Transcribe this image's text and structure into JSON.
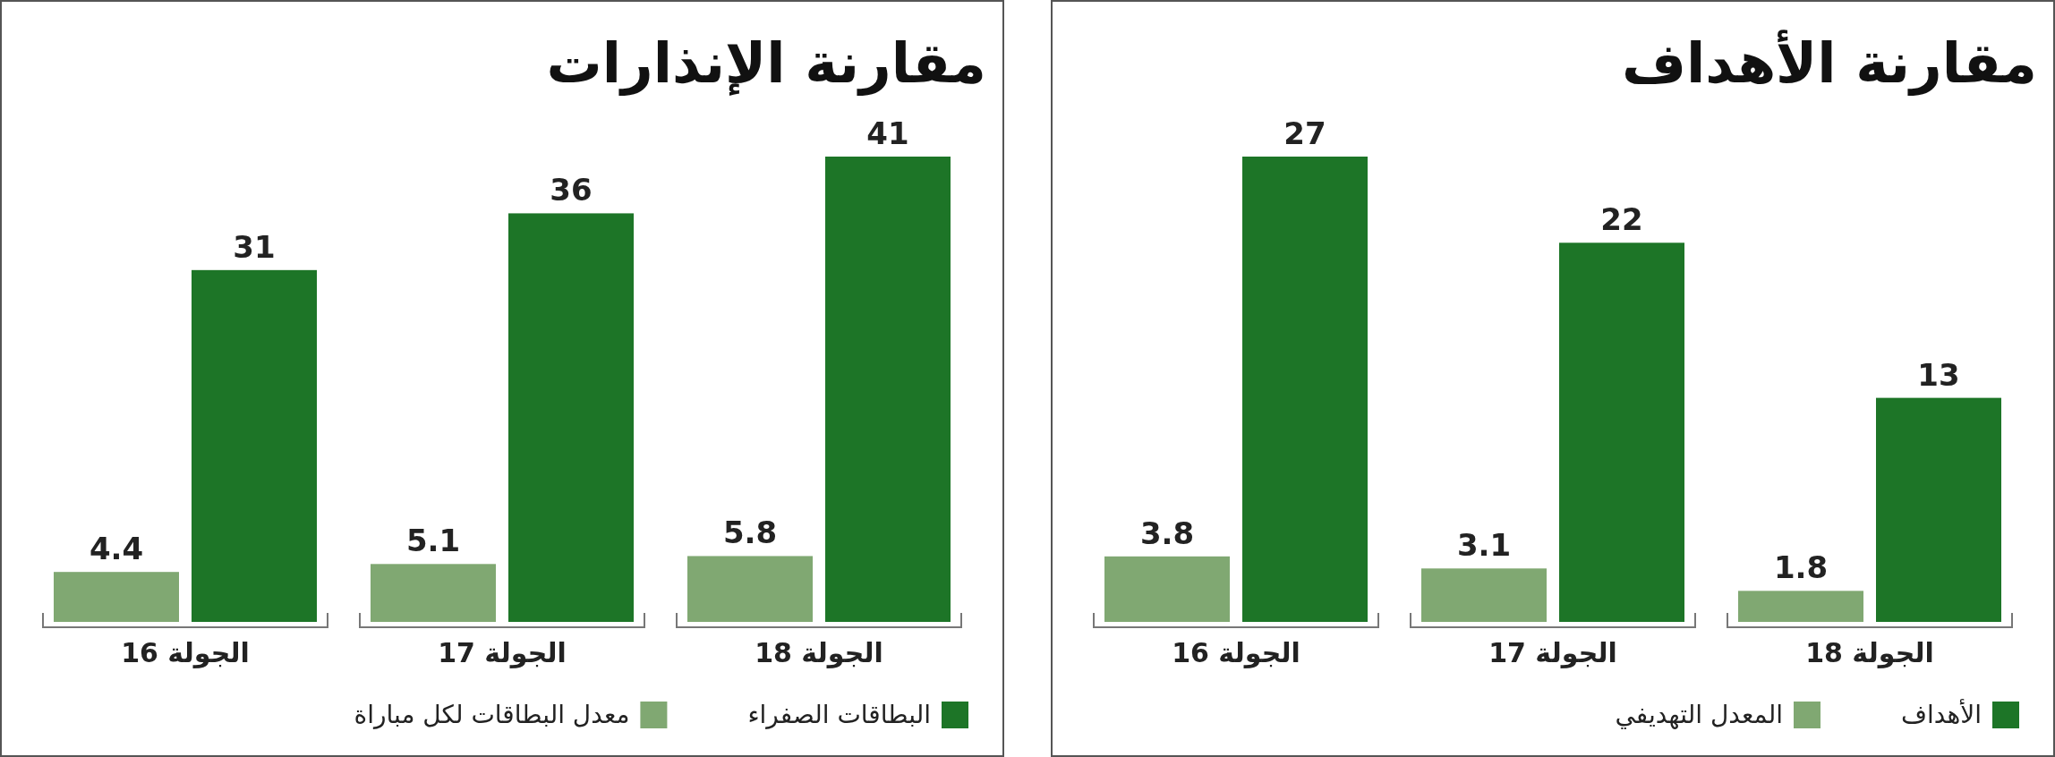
{
  "chart_data": [
    {
      "type": "bar",
      "title": "مقارنة الأهداف",
      "categories": [
        "الجولة 16",
        "الجولة 17",
        "الجولة 18"
      ],
      "series": [
        {
          "name": "المعدل التهديفي",
          "color": "#80a872",
          "values": [
            3.8,
            3.1,
            1.8
          ]
        },
        {
          "name": "الأهداف",
          "color": "#1d7527",
          "values": [
            27,
            22,
            13
          ]
        }
      ],
      "data_labels": true,
      "legend": "bottom"
    },
    {
      "type": "bar",
      "title": "مقارنة الإنذارات",
      "categories": [
        "الجولة 16",
        "الجولة 17",
        "الجولة 18"
      ],
      "series": [
        {
          "name": "معدل البطاقات لكل مباراة",
          "color": "#80a872",
          "values": [
            4.4,
            5.1,
            5.8
          ]
        },
        {
          "name": "البطاقات الصفراء",
          "color": "#1d7527",
          "values": [
            31,
            36,
            41
          ]
        }
      ],
      "data_labels": true,
      "legend": "bottom"
    }
  ]
}
